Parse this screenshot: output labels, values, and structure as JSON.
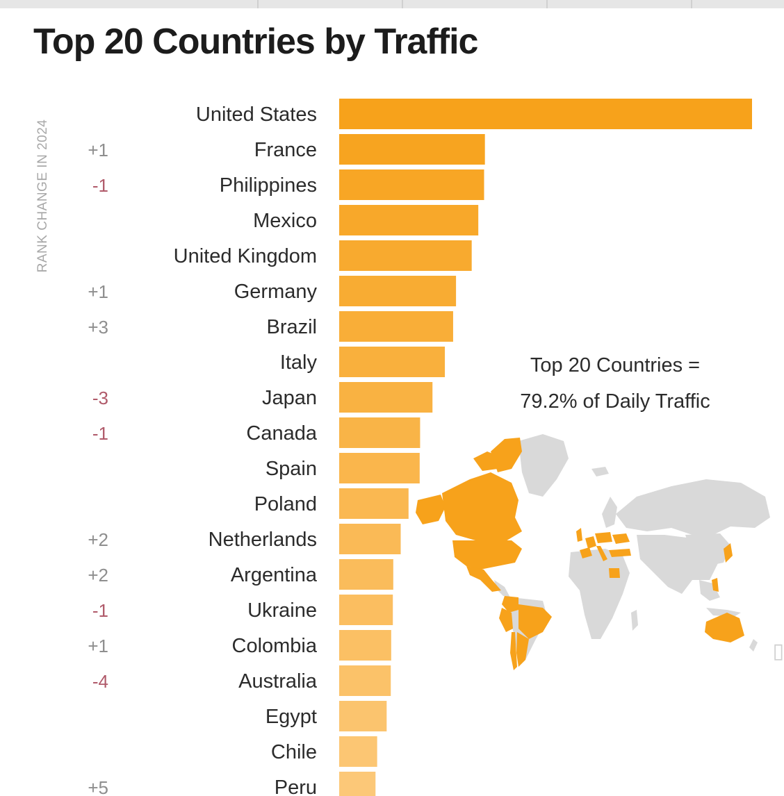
{
  "chart_data": {
    "type": "bar",
    "orientation": "horizontal",
    "title": "Top 20 Countries by Traffic",
    "rank_change_title": "RANK CHANGE IN 2024",
    "categories": [
      "United States",
      "France",
      "Philippines",
      "Mexico",
      "United Kingdom",
      "Germany",
      "Brazil",
      "Italy",
      "Japan",
      "Canada",
      "Spain",
      "Poland",
      "Netherlands",
      "Argentina",
      "Ukraine",
      "Colombia",
      "Australia",
      "Egypt",
      "Chile",
      "Peru"
    ],
    "values": [
      100,
      35.3,
      35.1,
      33.7,
      32.1,
      28.3,
      27.6,
      25.6,
      22.6,
      19.6,
      19.5,
      16.8,
      14.9,
      13.1,
      13.0,
      12.6,
      12.5,
      11.5,
      9.2,
      8.8
    ],
    "rank_changes": [
      "",
      "+1",
      "-1",
      "",
      "",
      "+1",
      "+3",
      "",
      "-3",
      "-1",
      "",
      "",
      "+2",
      "+2",
      "-1",
      "+1",
      "-4",
      "",
      "",
      "+5"
    ],
    "xlim": [
      0,
      100
    ],
    "bar_color_top": "#f7a21b",
    "bar_color_bottom": "#fcc878",
    "positive_change_color": "#8e8e8e",
    "negative_change_color": "#b05a6a",
    "grid": false
  },
  "annotation": {
    "line1": "Top 20 Countries =",
    "line2": "79.2% of Daily Traffic"
  },
  "map": {
    "highlight_color": "#f7a21b",
    "base_color": "#d9d9d9"
  }
}
